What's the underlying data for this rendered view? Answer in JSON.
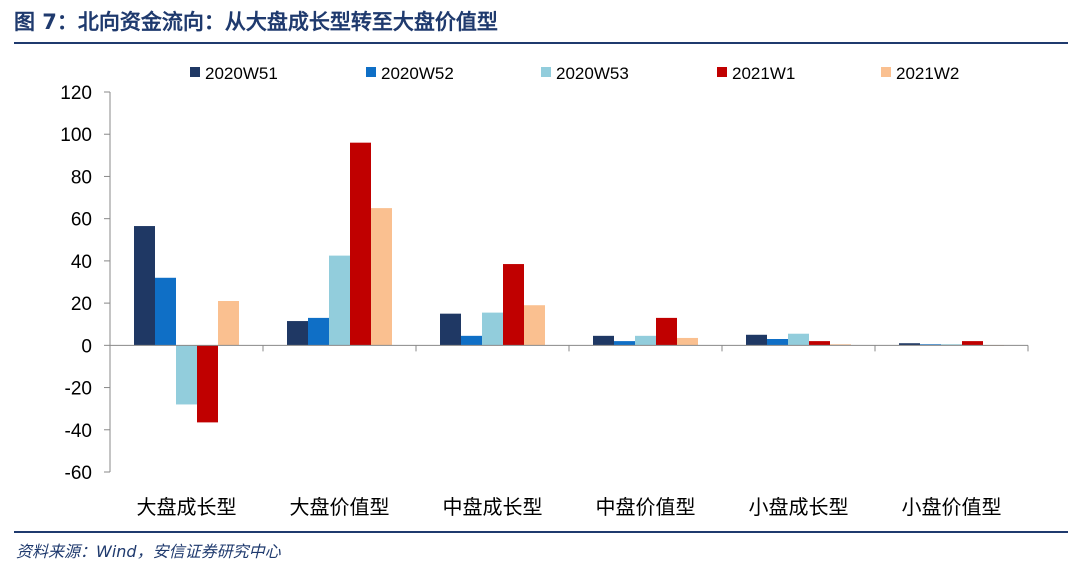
{
  "header": {
    "title": "图 7：北向资金流向：从大盘成长型转至大盘价值型"
  },
  "footer": {
    "source": "资料来源：Wind，安信证券研究中心"
  },
  "chart_data": {
    "type": "bar",
    "title": "",
    "xlabel": "",
    "ylabel": "",
    "ylim": [
      -60,
      120
    ],
    "yticks": [
      120,
      100,
      80,
      60,
      40,
      20,
      0,
      -20,
      -40,
      -60
    ],
    "grid": false,
    "legend_position": "top",
    "categories": [
      "大盘成长型",
      "大盘价值型",
      "中盘成长型",
      "中盘价值型",
      "小盘成长型",
      "小盘价值型"
    ],
    "series": [
      {
        "name": "2020W51",
        "color": "#1f3864",
        "values": [
          56.5,
          11.5,
          15,
          4.5,
          5,
          1
        ]
      },
      {
        "name": "2020W52",
        "color": "#0f6fc6",
        "values": [
          32,
          13,
          4.5,
          2,
          3,
          0.5
        ]
      },
      {
        "name": "2020W53",
        "color": "#92cddc",
        "values": [
          -28,
          42.5,
          15.5,
          4.5,
          5.5,
          0.5
        ]
      },
      {
        "name": "2021W1",
        "color": "#c00000",
        "values": [
          -36.5,
          96,
          38.5,
          13,
          2,
          2
        ]
      },
      {
        "name": "2021W2",
        "color": "#fac090",
        "values": [
          21,
          65,
          19,
          3.5,
          0.5,
          0
        ]
      }
    ]
  }
}
